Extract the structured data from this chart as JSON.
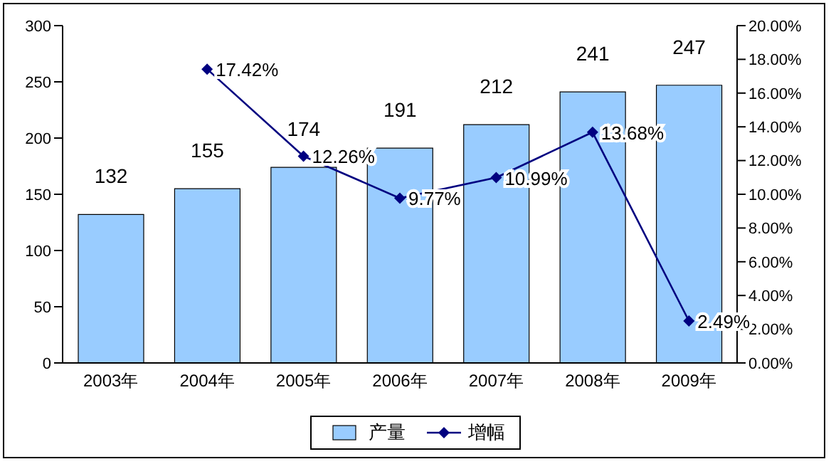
{
  "chart_data": {
    "type": "bar",
    "categories": [
      "2003年",
      "2004年",
      "2005年",
      "2006年",
      "2007年",
      "2008年",
      "2009年"
    ],
    "series": [
      {
        "name": "产量",
        "color": "#99ccff",
        "values": [
          132,
          155,
          174,
          191,
          212,
          241,
          247
        ]
      },
      {
        "name": "增幅",
        "type": "line",
        "axis": "y2",
        "color": "#000080",
        "values": [
          null,
          17.42,
          12.26,
          9.77,
          10.99,
          13.68,
          2.49
        ],
        "value_labels": [
          null,
          "17.42%",
          "12.26%",
          "9.77%",
          "10.99%",
          "13.68%",
          "2.49%"
        ]
      }
    ],
    "ylim": [
      0,
      300
    ],
    "yticks": [
      0,
      50,
      100,
      150,
      200,
      250,
      300
    ],
    "y2lim": [
      0,
      20
    ],
    "y2ticks": [
      {
        "value": 0,
        "label": "0.00%"
      },
      {
        "value": 2,
        "label": "2.00%"
      },
      {
        "value": 4,
        "label": "4.00%"
      },
      {
        "value": 6,
        "label": "6.00%"
      },
      {
        "value": 8,
        "label": "8.00%"
      },
      {
        "value": 10,
        "label": "10.00%"
      },
      {
        "value": 12,
        "label": "12.00%"
      },
      {
        "value": 14,
        "label": "14.00%"
      },
      {
        "value": 16,
        "label": "16.00%"
      },
      {
        "value": 18,
        "label": "18.00%"
      },
      {
        "value": 20,
        "label": "20.00%"
      }
    ],
    "data_labels": true,
    "marker": "diamond",
    "legend": "bottom",
    "grid": false
  }
}
